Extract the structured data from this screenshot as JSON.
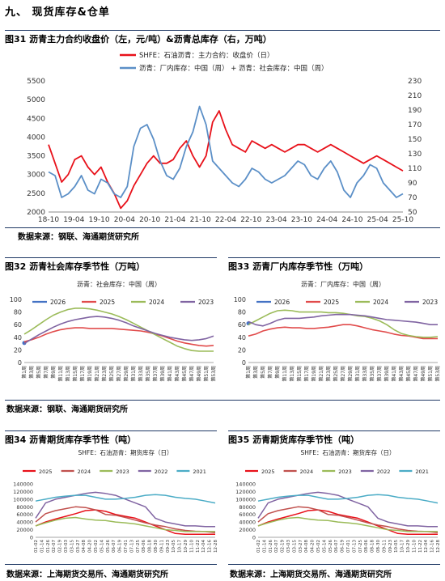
{
  "section_title": "九、 现货库存&仓单",
  "charts": [
    {
      "fig_title": "图31  沥青主力合约收盘价（左，元/吨）&沥青总库存（右，万吨）",
      "source": "数据来源：钢联、海通期货研究所"
    },
    {
      "fig_title": "图32  沥青社会库存季节性（万吨）",
      "source": "数据来源：钢联、海通期货研究所"
    },
    {
      "fig_title": "图33  沥青厂内库存季节性（万吨）",
      "source": ""
    },
    {
      "fig_title": "图34  沥青期货库存季节性（吨）",
      "source": "数据来源：上海期货交易所、海通期货研究所"
    },
    {
      "fig_title": "图35  沥青期货库存季节性（吨）",
      "source": "数据来源：上海期货交易所、海通期货研究所"
    }
  ],
  "chart_data": [
    {
      "type": "line",
      "series": [
        {
          "name": "SHFE：石油沥青：主力合约：收盘价（日）",
          "axis": "left",
          "color": "#e8111a",
          "values": [
            3800,
            3300,
            2800,
            3000,
            3400,
            3500,
            3200,
            3000,
            3200,
            2800,
            2500,
            2100,
            2300,
            2700,
            3000,
            3300,
            3500,
            3300,
            3300,
            3400,
            3700,
            3900,
            3500,
            3200,
            3500,
            4400,
            4700,
            4200,
            3800,
            3700,
            3600,
            3900,
            3800,
            3700,
            3800,
            3700,
            3600,
            3700,
            3800,
            3800,
            3700,
            3600,
            3700,
            3800,
            3700,
            3600,
            3500,
            3400,
            3300,
            3400,
            3500,
            3400,
            3300,
            3200,
            3100
          ]
        },
        {
          "name": "沥青：厂内库存：中国（周） + 沥青：社会库存：中国（周）",
          "axis": "right",
          "color": "#5b8fc7",
          "values": [
            105,
            100,
            70,
            75,
            85,
            100,
            80,
            75,
            95,
            90,
            75,
            70,
            85,
            140,
            165,
            170,
            150,
            120,
            100,
            95,
            110,
            140,
            160,
            195,
            170,
            120,
            110,
            100,
            90,
            85,
            95,
            110,
            105,
            95,
            90,
            95,
            100,
            110,
            120,
            115,
            100,
            95,
            110,
            120,
            105,
            80,
            70,
            90,
            100,
            115,
            110,
            90,
            80,
            70,
            75
          ]
        }
      ],
      "x_ticks": [
        "18-10",
        "19-04",
        "19-10",
        "20-04",
        "20-10",
        "21-04",
        "21-10",
        "22-04",
        "22-10",
        "23-04",
        "23-10",
        "24-04",
        "24-10",
        "25-04",
        "25-10"
      ],
      "y_left_ticks": [
        2000,
        2500,
        3000,
        3500,
        4000,
        4500,
        5000,
        5500
      ],
      "y_right_ticks": [
        50,
        70,
        90,
        110,
        130,
        150,
        170,
        190,
        210,
        230
      ],
      "ylim_left": [
        2000,
        5500
      ],
      "ylim_right": [
        50,
        230
      ],
      "legend": "top-left"
    },
    {
      "type": "line",
      "title": "沥青：社会库存：中国（周）",
      "x_ticks": [
        "第1周",
        "第3周",
        "第5周",
        "第7周",
        "第9周",
        "第11周",
        "第13周",
        "第15周",
        "第17周",
        "第19周",
        "第21周",
        "第23周",
        "第25周",
        "第27周",
        "第29周",
        "第31周",
        "第33周",
        "第35周",
        "第37周",
        "第39周",
        "第41周",
        "第43周",
        "第45周",
        "第47周",
        "第49周",
        "第51周",
        "第53周"
      ],
      "y_ticks": [
        0,
        20,
        40,
        60,
        80,
        100
      ],
      "ylim": [
        0,
        100
      ],
      "series": [
        {
          "name": "2026",
          "color": "#4472c4",
          "values": [
            31
          ]
        },
        {
          "name": "2025",
          "color": "#e14b4b",
          "values": [
            33,
            36,
            40,
            45,
            49,
            52,
            54,
            55,
            55,
            54,
            54,
            54,
            54,
            53,
            52,
            51,
            50,
            48,
            45,
            42,
            38,
            34,
            31,
            29,
            27,
            26,
            27
          ]
        },
        {
          "name": "2024",
          "color": "#9bbb59",
          "values": [
            45,
            52,
            60,
            68,
            75,
            80,
            84,
            86,
            86,
            85,
            83,
            80,
            77,
            73,
            68,
            62,
            56,
            50,
            44,
            38,
            32,
            26,
            22,
            19,
            18,
            18,
            18
          ]
        },
        {
          "name": "2023",
          "color": "#8064a2",
          "values": [
            30,
            37,
            44,
            50,
            56,
            61,
            65,
            68,
            70,
            72,
            73,
            72,
            70,
            67,
            63,
            58,
            54,
            50,
            46,
            43,
            40,
            38,
            36,
            35,
            36,
            38,
            42
          ]
        }
      ],
      "legend": "top"
    },
    {
      "type": "line",
      "title": "沥青：厂内库存：中国（周）",
      "x_ticks": [
        "第1周",
        "第3周",
        "第5周",
        "第7周",
        "第9周",
        "第11周",
        "第13周",
        "第15周",
        "第17周",
        "第19周",
        "第21周",
        "第23周",
        "第25周",
        "第27周",
        "第29周",
        "第31周",
        "第33周",
        "第35周",
        "第37周",
        "第39周",
        "第41周",
        "第43周",
        "第45周",
        "第47周",
        "第49周",
        "第51周",
        "第53周"
      ],
      "y_ticks": [
        0,
        20,
        40,
        60,
        80,
        100
      ],
      "ylim": [
        0,
        100
      ],
      "series": [
        {
          "name": "2026",
          "color": "#4472c4",
          "values": [
            62
          ]
        },
        {
          "name": "2025",
          "color": "#e14b4b",
          "values": [
            42,
            45,
            50,
            53,
            55,
            56,
            55,
            55,
            54,
            54,
            55,
            56,
            58,
            60,
            60,
            58,
            55,
            52,
            50,
            48,
            45,
            43,
            42,
            40,
            38,
            38,
            38
          ]
        },
        {
          "name": "2024",
          "color": "#9bbb59",
          "values": [
            60,
            66,
            72,
            78,
            82,
            83,
            82,
            80,
            80,
            80,
            80,
            79,
            79,
            78,
            76,
            74,
            73,
            70,
            66,
            60,
            52,
            46,
            43,
            41,
            40,
            40,
            41
          ]
        },
        {
          "name": "2023",
          "color": "#8064a2",
          "values": [
            65,
            60,
            58,
            62,
            67,
            70,
            70,
            70,
            71,
            72,
            74,
            75,
            76,
            76,
            76,
            75,
            74,
            72,
            70,
            68,
            67,
            66,
            65,
            64,
            62,
            60,
            60
          ]
        }
      ],
      "legend": "top"
    },
    {
      "type": "line",
      "title": "SHFE：石油沥青：期货库存（日）",
      "x_ticks": [
        "01-02",
        "01-14",
        "01-26",
        "02-07",
        "02-19",
        "03-03",
        "03-15",
        "03-27",
        "04-08",
        "04-20",
        "05-02",
        "05-14",
        "05-26",
        "06-07",
        "06-19",
        "07-01",
        "07-13",
        "07-25",
        "08-06",
        "08-18",
        "08-30",
        "09-11",
        "09-23",
        "10-05",
        "10-17",
        "10-29",
        "11-10",
        "11-22",
        "12-04",
        "12-16",
        "12-28"
      ],
      "y_ticks": [
        0,
        20000,
        40000,
        60000,
        80000,
        100000,
        120000,
        140000
      ],
      "ylim": [
        0,
        140000
      ],
      "series": [
        {
          "name": "2025",
          "color": "#e8111a",
          "values": [
            30000,
            40000,
            48000,
            55000,
            62000,
            70000,
            72000,
            68000,
            60000,
            55000,
            50000,
            40000,
            30000,
            20000,
            10000,
            8000,
            8000,
            8000,
            8000
          ]
        },
        {
          "name": "2024",
          "color": "#c0504d",
          "values": [
            40000,
            62000,
            70000,
            75000,
            80000,
            78000,
            72000,
            60000,
            58000,
            52000,
            45000,
            38000,
            32000,
            28000,
            22000,
            18000,
            16000,
            15000,
            12000
          ]
        },
        {
          "name": "2023",
          "color": "#9bbb59",
          "values": [
            30000,
            38000,
            45000,
            50000,
            52000,
            48000,
            45000,
            44000,
            40000,
            38000,
            35000,
            30000,
            25000,
            20000,
            18000,
            15000,
            15000,
            15000,
            15000
          ]
        },
        {
          "name": "2022",
          "color": "#8064a2",
          "values": [
            50000,
            90000,
            100000,
            105000,
            110000,
            115000,
            118000,
            115000,
            110000,
            100000,
            90000,
            80000,
            50000,
            40000,
            35000,
            30000,
            30000,
            28000,
            28000
          ]
        },
        {
          "name": "2021",
          "color": "#4bacc6",
          "values": [
            95000,
            100000,
            105000,
            108000,
            110000,
            110000,
            105000,
            100000,
            100000,
            102000,
            105000,
            110000,
            112000,
            110000,
            105000,
            102000,
            100000,
            95000,
            90000
          ]
        }
      ],
      "legend": "top"
    },
    {
      "type": "line",
      "title": "SHFE：石油沥青：期货库存（日）",
      "x_ticks": [
        "01-02",
        "01-14",
        "01-26",
        "02-07",
        "02-19",
        "03-03",
        "03-15",
        "03-27",
        "04-08",
        "04-20",
        "05-02",
        "05-14",
        "05-26",
        "06-07",
        "06-19",
        "07-01",
        "07-13",
        "07-25",
        "08-06",
        "08-18",
        "08-30",
        "09-11",
        "09-23",
        "10-05",
        "10-17",
        "10-29",
        "11-10",
        "11-22",
        "12-04",
        "12-16",
        "12-28"
      ],
      "y_ticks": [
        0,
        20000,
        40000,
        60000,
        80000,
        100000,
        120000,
        140000
      ],
      "ylim": [
        0,
        140000
      ],
      "series": [
        {
          "name": "2025",
          "color": "#e8111a",
          "values": [
            30000,
            40000,
            48000,
            55000,
            62000,
            70000,
            72000,
            68000,
            60000,
            55000,
            50000,
            40000,
            30000,
            20000,
            10000,
            8000,
            8000,
            8000,
            8000
          ]
        },
        {
          "name": "2024",
          "color": "#c0504d",
          "values": [
            40000,
            62000,
            70000,
            75000,
            80000,
            78000,
            72000,
            60000,
            58000,
            52000,
            45000,
            38000,
            32000,
            28000,
            22000,
            18000,
            16000,
            15000,
            12000
          ]
        },
        {
          "name": "2023",
          "color": "#9bbb59",
          "values": [
            30000,
            38000,
            45000,
            50000,
            52000,
            48000,
            45000,
            44000,
            40000,
            38000,
            35000,
            30000,
            25000,
            20000,
            18000,
            15000,
            15000,
            15000,
            15000
          ]
        },
        {
          "name": "2022",
          "color": "#8064a2",
          "values": [
            50000,
            90000,
            100000,
            105000,
            110000,
            115000,
            118000,
            115000,
            110000,
            100000,
            90000,
            80000,
            50000,
            40000,
            35000,
            30000,
            30000,
            28000,
            28000
          ]
        },
        {
          "name": "2021",
          "color": "#4bacc6",
          "values": [
            95000,
            100000,
            105000,
            108000,
            110000,
            110000,
            105000,
            100000,
            100000,
            102000,
            105000,
            110000,
            112000,
            110000,
            105000,
            102000,
            100000,
            95000,
            90000
          ]
        }
      ],
      "legend": "top"
    }
  ]
}
